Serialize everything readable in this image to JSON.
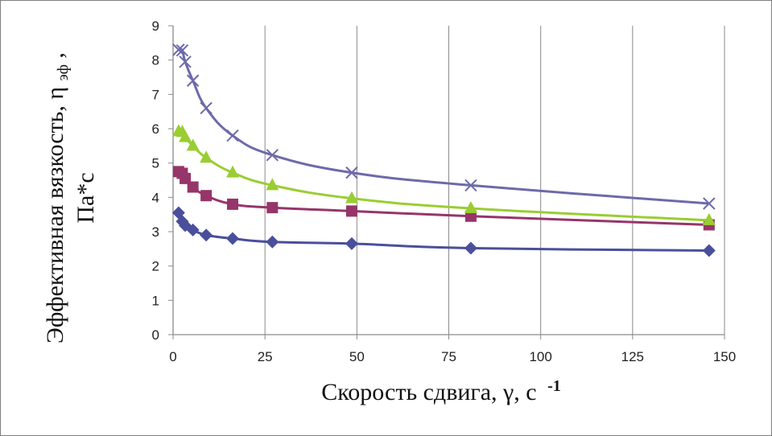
{
  "chart_data": {
    "type": "line",
    "xlabel": "Скорость сдвига, γ, с",
    "xlabel_sup": "-1",
    "ylabel_line1": "Эффективная вязкость, η",
    "ylabel_sub": "эф",
    "ylabel_tail": ",",
    "ylabel_line2": "Па*с",
    "xlim": [
      0,
      150
    ],
    "ylim": [
      0,
      9
    ],
    "x_ticks": [
      0,
      25,
      50,
      75,
      100,
      125,
      150
    ],
    "y_ticks": [
      0,
      1,
      2,
      3,
      4,
      5,
      6,
      7,
      8,
      9
    ],
    "grid": "vertical",
    "legend": "none",
    "series": [
      {
        "marker": "diamond",
        "color": "#4a4f9c",
        "x": [
          1.5,
          2.5,
          3.3,
          5.4,
          9.0,
          16.2,
          27.0,
          48.6,
          81.0,
          145.8
        ],
        "y": [
          3.55,
          3.3,
          3.18,
          3.05,
          2.9,
          2.8,
          2.7,
          2.65,
          2.52,
          2.45
        ]
      },
      {
        "marker": "square",
        "color": "#96356a",
        "x": [
          1.5,
          2.5,
          3.3,
          5.4,
          9.0,
          16.2,
          27.0,
          48.6,
          81.0,
          145.8
        ],
        "y": [
          4.75,
          4.7,
          4.55,
          4.3,
          4.05,
          3.8,
          3.7,
          3.6,
          3.45,
          3.2
        ]
      },
      {
        "marker": "triangle",
        "color": "#9acd32",
        "x": [
          1.5,
          2.5,
          3.3,
          5.4,
          9.0,
          16.2,
          27.0,
          48.6,
          81.0,
          145.8
        ],
        "y": [
          5.92,
          5.9,
          5.75,
          5.5,
          5.15,
          4.72,
          4.35,
          3.97,
          3.68,
          3.33
        ]
      },
      {
        "marker": "x",
        "color": "#6c6aaa",
        "x": [
          1.5,
          2.5,
          3.3,
          5.4,
          9.0,
          16.2,
          27.0,
          48.6,
          81.0,
          145.8
        ],
        "y": [
          8.3,
          8.28,
          7.95,
          7.4,
          6.6,
          5.8,
          5.23,
          4.72,
          4.35,
          3.82
        ]
      }
    ]
  }
}
